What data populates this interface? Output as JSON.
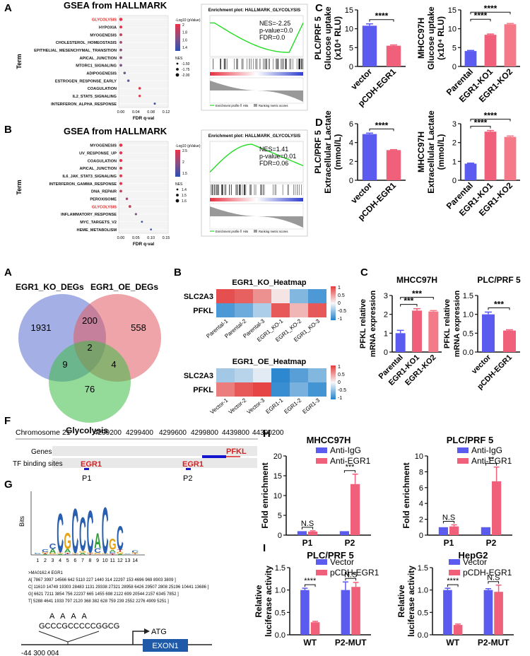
{
  "panel_letters": {
    "topA": "A",
    "topB": "B",
    "topC": "C",
    "topD": "D",
    "midA": "A",
    "midB": "B",
    "midC": "C",
    "F": "F",
    "G": "G",
    "H": "H",
    "I": "I"
  },
  "gsea_a": {
    "title": "GSEA from HALLMARK",
    "ylabel": "Term",
    "xlabel": "FDR q-val",
    "terms": [
      "GLYCOLYSIS",
      "HYPOXIA",
      "MYOGENESIS",
      "CHOLESTEROL_HOMEOSTASIS",
      "EPITHELIAL_MESENCHYMAL_TRANSITION",
      "APICAL_JUNCTION",
      "MTORC1_SIGNALING",
      "ADIPOGENESIS",
      "ESTROGEN_RESPONSE_EARLY",
      "COAGULATION",
      "IL2_STAT5_SIGNALING",
      "INTERFERON_ALPHA_RESPONSE"
    ],
    "highlight": "GLYCOLYSIS",
    "fdr": [
      0.0,
      0.0,
      0.0,
      0.0,
      0.0,
      0.0,
      0.0,
      0.01,
      0.02,
      0.05,
      0.05,
      0.09
    ],
    "colors": [
      "#e8334a",
      "#e8334a",
      "#c9405c",
      "#a04b73",
      "#8a5080",
      "#8a5080",
      "#7a5488",
      "#6e5890",
      "#6a5a92",
      "#d73a4a",
      "#e04050",
      "#3a52a4"
    ],
    "sizes": [
      2.3,
      2.0,
      2.0,
      1.9,
      1.9,
      1.9,
      1.9,
      1.8,
      1.75,
      1.8,
      1.7,
      1.5
    ],
    "xticks": [
      "0.00",
      "0.04",
      "0.08",
      "0.12"
    ],
    "legend_color_title": "-Log10 (pValue)",
    "legend_color_ticks": [
      "2",
      "1.8",
      "1.6",
      "1.4"
    ],
    "legend_size_title": "NES",
    "legend_size_labels": [
      "-1.50",
      "-1.75",
      "-2.00"
    ]
  },
  "gsea_b": {
    "title": "GSEA from HALLMARK",
    "ylabel": "Term",
    "xlabel": "FDR q-val",
    "terms": [
      "MYOGENESIS",
      "UV_RESPONSE_UP",
      "COAGULATION",
      "APICAL_JUNCTION",
      "IL6_JAK_STAT3_SIGNALING",
      "INTERFERON_GAMMA_RESPONSE",
      "DNA_REPAIR",
      "PEROXISOME",
      "GLYCOLYSIS",
      "INFLAMMATORY_RESPONSE",
      "MYC_TARGETS_V2",
      "HEME_METABOLISM"
    ],
    "highlight": "GLYCOLYSIS",
    "fdr": [
      0.0,
      0.0,
      0.0,
      0.0,
      0.0,
      0.0,
      0.0,
      0.02,
      0.03,
      0.05,
      0.07,
      0.1
    ],
    "colors": [
      "#e8334a",
      "#e8334a",
      "#e8334a",
      "#d93c50",
      "#e8334a",
      "#e8334a",
      "#c9405c",
      "#a04b73",
      "#b84660",
      "#7a5488",
      "#3a52a4",
      "#3a52a4"
    ],
    "sizes": [
      2.3,
      2.1,
      2.1,
      2.0,
      2.0,
      2.0,
      1.9,
      1.7,
      1.9,
      1.6,
      1.4,
      1.3
    ],
    "xticks": [
      "0.00",
      "0.05",
      "0.10",
      "0.15"
    ],
    "legend_color_title": "-Log10 (pValue)",
    "legend_color_ticks": [
      "2.5",
      "2",
      "1.5"
    ],
    "legend_size_title": "NES",
    "legend_size_labels": [
      "1.4",
      "1.5",
      "1.6"
    ]
  },
  "enrich_a": {
    "title": "Enrichment plot: HALLMARK_GLYCOLYSIS",
    "stats": [
      "NES=-2.25",
      "p-value=0.0",
      "FDR=0.0"
    ],
    "legend": [
      "Enrichment profile",
      "Hits",
      "Ranking metric scores"
    ]
  },
  "enrich_b": {
    "title": "Enrichment plot: HALLMARK_GLYCOLYSIS",
    "stats": [
      "NES=1.41",
      "p-value=0.01",
      "FDR=0.06"
    ],
    "legend": [
      "Enrichment profile",
      "Hits",
      "Ranking metric scores"
    ]
  },
  "chart_data": [
    {
      "id": "topC1",
      "type": "bar",
      "ylabel": "PLC/PRF 5",
      "ylabel2": "Glucose uptake",
      "ylabel3": "(x10⁴ RLU)",
      "categories": [
        "vector",
        "pCDH-EGR1"
      ],
      "values": [
        10.8,
        5.5
      ],
      "errors": [
        0.5,
        0.2
      ],
      "colors": [
        "#5b5bef",
        "#f0607a"
      ],
      "ylim": [
        0,
        15
      ],
      "yticks": [
        "0",
        "5",
        "10",
        "15"
      ],
      "sig": [
        {
          "a": 0,
          "b": 1,
          "label": "****"
        }
      ]
    },
    {
      "id": "topC2",
      "type": "bar",
      "ylabel": "MHCC97H",
      "ylabel2": "Glucose uptake",
      "ylabel3": "(x10⁴ RLU)",
      "categories": [
        "Parental",
        "EGR1-KO1",
        "EGR1-KO2"
      ],
      "values": [
        4.1,
        8.4,
        11.2
      ],
      "errors": [
        0.15,
        0.2,
        0.2
      ],
      "colors": [
        "#5b5bef",
        "#f0607a",
        "#f47a8a"
      ],
      "ylim": [
        0,
        15
      ],
      "yticks": [
        "0",
        "5",
        "10",
        "15"
      ],
      "sig": [
        {
          "a": 0,
          "b": 1,
          "label": "****"
        },
        {
          "a": 0,
          "b": 2,
          "label": "****"
        }
      ]
    },
    {
      "id": "topD1",
      "type": "bar",
      "ylabel": "PLC/PRF 5",
      "ylabel2": "Extracellular Lactate",
      "ylabel3": "(mmol/L)",
      "categories": [
        "vector",
        "pCDH-EGR1"
      ],
      "values": [
        4.9,
        3.2
      ],
      "errors": [
        0.1,
        0.05
      ],
      "colors": [
        "#5b5bef",
        "#f0607a"
      ],
      "ylim": [
        0,
        6
      ],
      "yticks": [
        "0",
        "2",
        "4",
        "6"
      ],
      "sig": [
        {
          "a": 0,
          "b": 1,
          "label": "****"
        }
      ]
    },
    {
      "id": "topD2",
      "type": "bar",
      "ylabel": "MHCC97H",
      "ylabel2": "Extracellular Lactate",
      "ylabel3": "(mmol/L)",
      "categories": [
        "Parental",
        "EGR1-KO1",
        "EGR1-KO2"
      ],
      "values": [
        0.88,
        2.58,
        2.3
      ],
      "errors": [
        0.03,
        0.06,
        0.05
      ],
      "colors": [
        "#5b5bef",
        "#f0607a",
        "#f47a8a"
      ],
      "ylim": [
        0,
        3
      ],
      "yticks": [
        "0",
        "1",
        "2",
        "3"
      ],
      "sig": [
        {
          "a": 0,
          "b": 1,
          "label": "****"
        },
        {
          "a": 0,
          "b": 2,
          "label": "****"
        }
      ]
    },
    {
      "id": "midC1",
      "type": "bar",
      "title": "MHCC97H",
      "ylabel": "PFKL relative",
      "ylabel2": "mRNA expression",
      "categories": [
        "Parental",
        "EGR1-KO1",
        "EGR1-KO2"
      ],
      "values": [
        1.0,
        2.2,
        2.15
      ],
      "errors": [
        0.15,
        0.1,
        0.05
      ],
      "colors": [
        "#5b5bef",
        "#f0607a",
        "#f47a8a"
      ],
      "ylim": [
        0,
        3
      ],
      "yticks": [
        "0",
        "1",
        "2",
        "3"
      ],
      "sig": [
        {
          "a": 0,
          "b": 1,
          "label": "***"
        },
        {
          "a": 0,
          "b": 2,
          "label": "***"
        }
      ]
    },
    {
      "id": "midC2",
      "type": "bar",
      "title": "PLC/PRF 5",
      "ylabel": "PFKL relative",
      "ylabel2": "mRNA expression",
      "categories": [
        "vector",
        "pCDH-EGR1"
      ],
      "values": [
        1.0,
        0.57
      ],
      "errors": [
        0.06,
        0.02
      ],
      "colors": [
        "#5b5bef",
        "#f0607a"
      ],
      "ylim": [
        0,
        1.5
      ],
      "yticks": [
        "0.0",
        "0.5",
        "1.0",
        "1.5"
      ],
      "sig": [
        {
          "a": 0,
          "b": 1,
          "label": "***"
        }
      ]
    },
    {
      "id": "H1",
      "type": "grouped_bar",
      "title": "MHCC97H",
      "ylabel": "Fold enrichment",
      "categories": [
        "P1",
        "P2"
      ],
      "series": [
        {
          "name": "Anti-IgG",
          "values": [
            1.0,
            1.0
          ],
          "errors": [
            0,
            0
          ],
          "color": "#5b5bef"
        },
        {
          "name": "Anti-EGR1",
          "values": [
            0.9,
            12.9
          ],
          "errors": [
            0.2,
            2.5
          ],
          "color": "#f0607a"
        }
      ],
      "ylim": [
        0,
        20
      ],
      "yticks": [
        "0",
        "5",
        "10",
        "15",
        "20"
      ],
      "sig": [
        {
          "g": 0,
          "label": "N.S"
        },
        {
          "g": 1,
          "label": "***"
        }
      ]
    },
    {
      "id": "H2",
      "type": "grouped_bar",
      "title": "PLC/PRF 5",
      "ylabel": "Fold enrichment",
      "categories": [
        "P1",
        "P2"
      ],
      "series": [
        {
          "name": "Anti-IgG",
          "values": [
            1.0,
            1.0
          ],
          "errors": [
            0,
            0
          ],
          "color": "#5b5bef"
        },
        {
          "name": "Anti-EGR1",
          "values": [
            1.1,
            6.8
          ],
          "errors": [
            0.2,
            1.8
          ],
          "color": "#f0607a"
        }
      ],
      "ylim": [
        0,
        10
      ],
      "yticks": [
        "0",
        "2",
        "4",
        "6",
        "8",
        "10"
      ],
      "sig": [
        {
          "g": 0,
          "label": "N.S"
        },
        {
          "g": 1,
          "label": "**"
        }
      ]
    },
    {
      "id": "I1",
      "type": "grouped_bar",
      "title": "PLC/PRF 5",
      "ylabel": "Relative",
      "ylabel2": "luciferase activity",
      "categories": [
        "WT",
        "P2-MUT"
      ],
      "series": [
        {
          "name": "Vector",
          "values": [
            1.0,
            1.0
          ],
          "errors": [
            0.04,
            0.18
          ],
          "color": "#5b5bef"
        },
        {
          "name": "pCDH-EGR1",
          "values": [
            0.28,
            1.07
          ],
          "errors": [
            0.02,
            0.1
          ],
          "color": "#f0607a"
        }
      ],
      "ylim": [
        0,
        1.5
      ],
      "yticks": [
        "0.0",
        "0.5",
        "1.0",
        "1.5"
      ],
      "sig": [
        {
          "g": 0,
          "label": "****"
        },
        {
          "g": 1,
          "label": "N.S"
        }
      ]
    },
    {
      "id": "I2",
      "type": "grouped_bar",
      "title": "HepG2",
      "ylabel": "Relative",
      "ylabel2": "luciferase activity",
      "categories": [
        "WT",
        "P2-MUT"
      ],
      "series": [
        {
          "name": "Vector",
          "values": [
            1.0,
            1.0
          ],
          "errors": [
            0.04,
            0.03
          ],
          "color": "#5b5bef"
        },
        {
          "name": "pCDH-EGR1",
          "values": [
            0.22,
            0.96
          ],
          "errors": [
            0.02,
            0.15
          ],
          "color": "#f0607a"
        }
      ],
      "ylim": [
        0,
        1.5
      ],
      "yticks": [
        "0.0",
        "0.5",
        "1.0",
        "1.5"
      ],
      "sig": [
        {
          "g": 0,
          "label": "****"
        },
        {
          "g": 1,
          "label": "N.S"
        }
      ]
    }
  ],
  "venn": {
    "labels": [
      "EGR1_KO_DEGs",
      "EGR1_OE_DEGs",
      "Glycolysis"
    ],
    "counts": {
      "ko_only": "1931",
      "oe_only": "558",
      "gly_only": "76",
      "ko_oe": "200",
      "ko_gly": "9",
      "oe_gly": "4",
      "all": "2"
    },
    "colors": [
      "#5a6fd0",
      "#e05a60",
      "#3dbb45"
    ]
  },
  "heatmap_ko": {
    "title": "EGR1_KO_Heatmap",
    "rows": [
      "SLC2A3",
      "PFKL"
    ],
    "cols": [
      "Parental-1",
      "Parental-2",
      "Parental-3",
      "EGR1_KO-1",
      "EGR1_KO-2",
      "EGR1_KO-3"
    ],
    "values": [
      [
        0.9,
        0.8,
        0.55,
        0.1,
        -0.55,
        -0.8
      ],
      [
        -0.8,
        -0.65,
        -0.35,
        0.85,
        0.35,
        0.85
      ]
    ],
    "scale": [
      "1",
      "0.5",
      "0",
      "-0.5",
      "-1"
    ]
  },
  "heatmap_oe": {
    "title": "EGR1_OE_Heatmap",
    "rows": [
      "SLC2A3",
      "PFKL"
    ],
    "cols": [
      "Vector-1",
      "Vector-2",
      "Vector-3",
      "EGR1-1",
      "EGR1-2",
      "EGR1-3"
    ],
    "values": [
      [
        -0.4,
        -0.3,
        -0.1,
        -0.95,
        -0.75,
        -0.55
      ],
      [
        0.65,
        0.85,
        0.95,
        -0.9,
        -0.6,
        -0.85
      ]
    ],
    "scale": [
      "1",
      "0.5",
      "0",
      "-0.5",
      "-1"
    ]
  },
  "genome": {
    "chrom": "Chromosome 21",
    "coords": [
      "4299200",
      "4299400",
      "4299600",
      "4299800",
      "4439800",
      "44300200"
    ],
    "genes_label": "Genes",
    "tf_label": "TF binding sites",
    "gene_name": "PFKL",
    "site1": "EGR1",
    "site2": "EGR1",
    "p1": "P1",
    "p2": "P2"
  },
  "motif": {
    "ylabel": "Bits",
    "positions": [
      "1",
      "2",
      "3",
      "4",
      "5",
      "6",
      "7",
      "8",
      "9",
      "10",
      "11",
      "12",
      "13",
      "14"
    ],
    "id_line": ">MA0162.4 EGR1",
    "rows": [
      "A[ 7867 3997 14566 642 5110 227 1440 314 22297 153 4696 969 8903 3809 ]",
      "C[ 11610 14749 19303 28483 1131 29338 27321 28958 6426 29507 2808 25196 10441 13686 ]",
      "G[ 6621 7211 3854 756 22237 665 1455 698 2122 699 20544 2157 6345 7852 ]",
      "T[ 5288 4641 1933 797 2120 368 382 628 759 239 2552 2276 4909 5251 ]"
    ]
  },
  "promoter": {
    "mut_letters": "A A A A",
    "sequence": "GCCCGCCCCCGGCG",
    "atg": "ATG",
    "exon": "EXON1",
    "position": "-44 300 004"
  }
}
